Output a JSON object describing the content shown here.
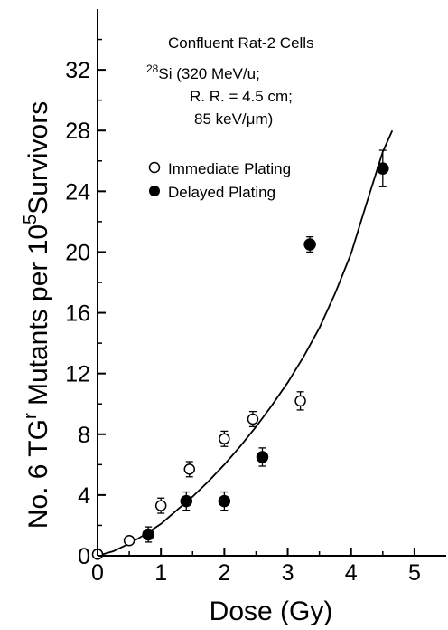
{
  "chart_data": {
    "type": "scatter",
    "xlabel": "Dose (Gy)",
    "ylabel_parts": {
      "a": "No. 6 TG",
      "sup1": "r",
      "b": " Mutants per 10",
      "sup2": "5",
      "c": "Survivors"
    },
    "xlim": [
      0,
      5.5
    ],
    "ylim": [
      0,
      36
    ],
    "xticks": [
      0,
      1,
      2,
      3,
      4,
      5
    ],
    "yticks": [
      0,
      4,
      8,
      12,
      16,
      20,
      24,
      28,
      32
    ],
    "annotation": {
      "line1": "Confluent Rat-2 Cells",
      "line2_sup": "28",
      "line2": "Si (320 MeV/u;",
      "line3": "R. R. = 4.5 cm;",
      "line4": "85 keV/μm)"
    },
    "series": [
      {
        "name": "Immediate Plating",
        "marker": "open-circle",
        "points": [
          {
            "x": 0.0,
            "y": 0.1,
            "err": 0.0
          },
          {
            "x": 0.5,
            "y": 1.0,
            "err": 0.0
          },
          {
            "x": 1.0,
            "y": 3.3,
            "err": 0.5
          },
          {
            "x": 1.45,
            "y": 5.7,
            "err": 0.5
          },
          {
            "x": 2.0,
            "y": 7.7,
            "err": 0.5
          },
          {
            "x": 2.45,
            "y": 9.0,
            "err": 0.5
          },
          {
            "x": 3.2,
            "y": 10.2,
            "err": 0.6
          }
        ]
      },
      {
        "name": "Delayed Plating",
        "marker": "filled-circle",
        "points": [
          {
            "x": 0.8,
            "y": 1.4,
            "err": 0.5
          },
          {
            "x": 1.4,
            "y": 3.6,
            "err": 0.6
          },
          {
            "x": 2.0,
            "y": 3.6,
            "err": 0.6
          },
          {
            "x": 2.6,
            "y": 6.5,
            "err": 0.6
          },
          {
            "x": 3.35,
            "y": 20.5,
            "err": 0.5
          },
          {
            "x": 4.5,
            "y": 25.5,
            "err": 1.2
          }
        ]
      }
    ],
    "fit_curve": {
      "style": "solid",
      "points": [
        [
          0,
          0
        ],
        [
          0.25,
          0.3
        ],
        [
          0.5,
          0.8
        ],
        [
          0.75,
          1.4
        ],
        [
          1.0,
          2.1
        ],
        [
          1.25,
          3.0
        ],
        [
          1.5,
          3.9
        ],
        [
          1.75,
          4.9
        ],
        [
          2.0,
          6.0
        ],
        [
          2.25,
          7.2
        ],
        [
          2.5,
          8.5
        ],
        [
          2.75,
          9.9
        ],
        [
          3.0,
          11.4
        ],
        [
          3.25,
          13.1
        ],
        [
          3.5,
          15.0
        ],
        [
          3.75,
          17.3
        ],
        [
          4.0,
          19.9
        ],
        [
          4.25,
          23.3
        ],
        [
          4.5,
          26.6
        ],
        [
          4.65,
          28.0
        ]
      ]
    }
  }
}
